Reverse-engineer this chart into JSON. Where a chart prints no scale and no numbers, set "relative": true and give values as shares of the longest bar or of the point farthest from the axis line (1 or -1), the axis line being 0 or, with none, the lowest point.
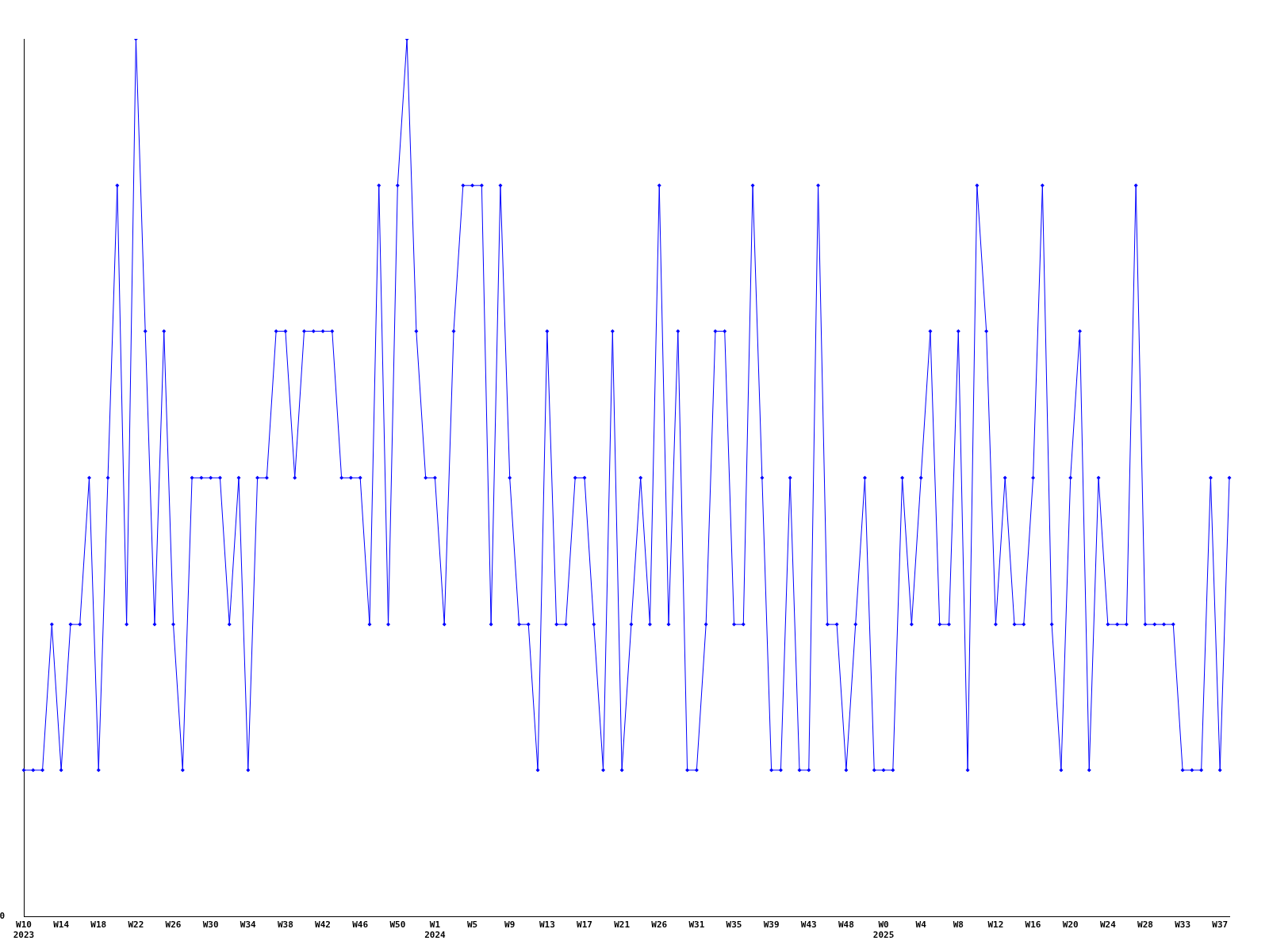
{
  "chart_data": {
    "type": "line",
    "relative": true,
    "color": "#0000ff",
    "marker": "diamond",
    "line_style": "solid",
    "grid": false,
    "legend": false,
    "annotations": [
      "0"
    ],
    "categories": [
      "W10\n2023",
      null,
      null,
      null,
      "W14",
      null,
      null,
      null,
      "W18",
      null,
      null,
      null,
      "W22",
      null,
      null,
      null,
      "W26",
      null,
      null,
      null,
      "W30",
      null,
      null,
      null,
      "W34",
      null,
      null,
      null,
      "W38",
      null,
      null,
      null,
      "W42",
      null,
      null,
      null,
      "W46",
      null,
      null,
      null,
      "W50",
      null,
      null,
      null,
      "W1\n2024",
      null,
      null,
      null,
      "W5",
      null,
      null,
      null,
      "W9",
      null,
      null,
      null,
      "W13",
      null,
      null,
      null,
      "W17",
      null,
      null,
      null,
      "W21",
      null,
      null,
      null,
      "W26",
      null,
      null,
      null,
      "W31",
      null,
      null,
      null,
      "W35",
      null,
      null,
      null,
      "W39",
      null,
      null,
      null,
      "W43",
      null,
      null,
      null,
      "W48",
      null,
      null,
      null,
      "W0\n2025",
      null,
      null,
      null,
      "W4",
      null,
      null,
      null,
      "W8",
      null,
      null,
      null,
      "W12",
      null,
      null,
      null,
      "W16",
      null,
      null,
      null,
      "W20",
      null,
      null,
      null,
      "W24",
      null,
      null,
      null,
      "W28",
      null,
      null,
      null,
      "W33",
      null,
      null,
      null,
      "W37",
      null
    ],
    "values": [
      0.167,
      0.167,
      0.167,
      0.333,
      0.167,
      0.333,
      0.333,
      0.5,
      0.167,
      0.5,
      0.833,
      0.333,
      1,
      0.667,
      0.333,
      0.667,
      0.333,
      0.167,
      0.5,
      0.5,
      0.5,
      0.5,
      0.333,
      0.5,
      0.167,
      0.5,
      0.5,
      0.667,
      0.667,
      0.5,
      0.667,
      0.667,
      0.667,
      0.667,
      0.5,
      0.5,
      0.5,
      0.333,
      0.833,
      0.333,
      0.833,
      1,
      0.667,
      0.5,
      0.5,
      0.333,
      0.667,
      0.833,
      0.833,
      0.833,
      0.333,
      0.833,
      0.5,
      0.333,
      0.333,
      0.167,
      0.667,
      0.333,
      0.333,
      0.5,
      0.5,
      0.333,
      0.167,
      0.667,
      0.167,
      0.333,
      0.5,
      0.333,
      0.833,
      0.333,
      0.667,
      0.167,
      0.167,
      0.333,
      0.667,
      0.667,
      0.333,
      0.333,
      0.833,
      0.5,
      0.167,
      0.167,
      0.5,
      0.167,
      0.167,
      0.833,
      0.333,
      0.333,
      0.167,
      0.333,
      0.5,
      0.167,
      0.167,
      0.167,
      0.5,
      0.333,
      0.5,
      0.667,
      0.333,
      0.333,
      0.667,
      0.167,
      0.833,
      0.667,
      0.333,
      0.5,
      0.333,
      0.333,
      0.5,
      0.833,
      0.333,
      0.167,
      0.5,
      0.667,
      0.167,
      0.5,
      0.333,
      0.333,
      0.333,
      0.833,
      0.333,
      0.333,
      0.333,
      0.333,
      0.167,
      0.167,
      0.167,
      0.5,
      0.167,
      0.5
    ]
  }
}
